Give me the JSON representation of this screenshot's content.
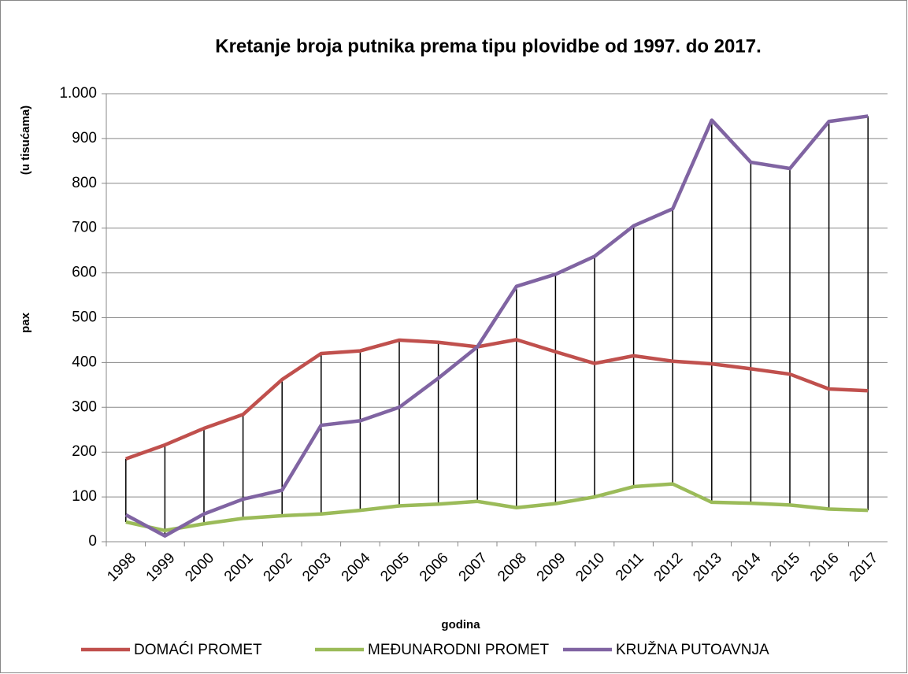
{
  "chart_data": {
    "type": "line",
    "title": "Kretanje  broja putnika prema tipu plovidbe od 1997. do 2017.",
    "x_label": "godina",
    "y_label": "pax",
    "y_sublabel": "(u tisućama)",
    "categories": [
      "1998",
      "1999",
      "2000",
      "2001",
      "2002",
      "2003",
      "2004",
      "2005",
      "2006",
      "2007",
      "2008",
      "2009",
      "2010",
      "2011",
      "2012",
      "2013",
      "2014",
      "2015",
      "2016",
      "2017"
    ],
    "series": [
      {
        "name": "DOMAĆI PROMET",
        "color": "#c0504d",
        "values": [
          185,
          216,
          253,
          284,
          362,
          420,
          426,
          450,
          445,
          435,
          451,
          424,
          398,
          415,
          403,
          397,
          386,
          374,
          341,
          337
        ]
      },
      {
        "name": "MEĐUNARODNI PROMET",
        "color": "#9bbb59",
        "values": [
          44,
          25,
          40,
          52,
          58,
          62,
          70,
          80,
          84,
          90,
          76,
          85,
          100,
          123,
          129,
          88,
          86,
          82,
          73,
          70
        ]
      },
      {
        "name": "KRUŽNA PUTOAVNJA",
        "color": "#8064a2",
        "values": [
          60,
          13,
          62,
          95,
          115,
          260,
          270,
          300,
          365,
          435,
          570,
          597,
          637,
          705,
          743,
          941,
          847,
          833,
          938,
          950
        ]
      }
    ],
    "ylim": [
      0,
      1000
    ],
    "yticks": [
      0,
      100,
      200,
      300,
      400,
      500,
      600,
      700,
      800,
      900,
      {
        "value": 1000,
        "label": "1.000"
      }
    ],
    "grid": true,
    "high_low_lines": true,
    "legend": "bottom"
  }
}
